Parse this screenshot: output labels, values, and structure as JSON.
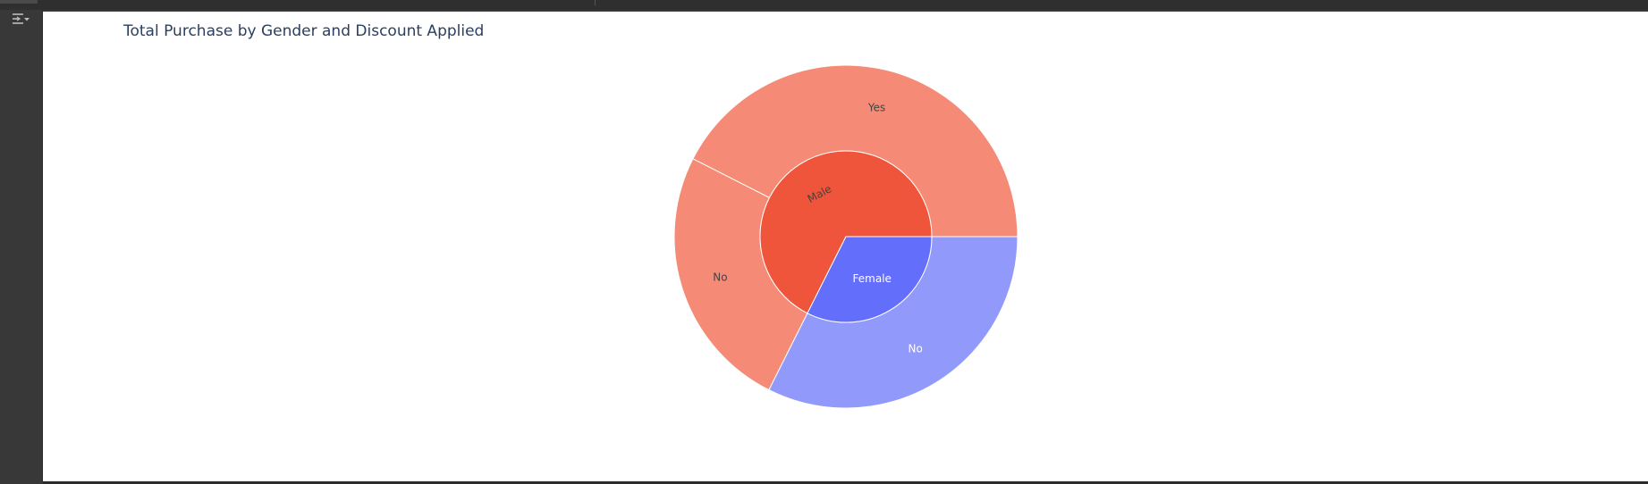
{
  "cell": {
    "toggle_icon": "output-collapse-icon"
  },
  "chart_data": {
    "type": "sunburst",
    "title": "Total Purchase by Gender and Discount Applied",
    "start_angle_deg": 0,
    "direction": "counterclockwise",
    "inner": [
      {
        "label": "Male",
        "share": 0.676,
        "color": "#ef553b",
        "text_color": "#444444"
      },
      {
        "label": "Female",
        "share": 0.324,
        "color": "#636efa",
        "text_color": "#ffffff"
      }
    ],
    "outer": [
      {
        "parent": "Male",
        "label": "Yes",
        "share": 0.425,
        "color": "#f58a76",
        "text_color": "#444444"
      },
      {
        "parent": "Male",
        "label": "No",
        "share": 0.251,
        "color": "#f58a76",
        "text_color": "#444444"
      },
      {
        "parent": "Female",
        "label": "No",
        "share": 0.324,
        "color": "#9199fb",
        "text_color": "#ffffff"
      }
    ]
  }
}
